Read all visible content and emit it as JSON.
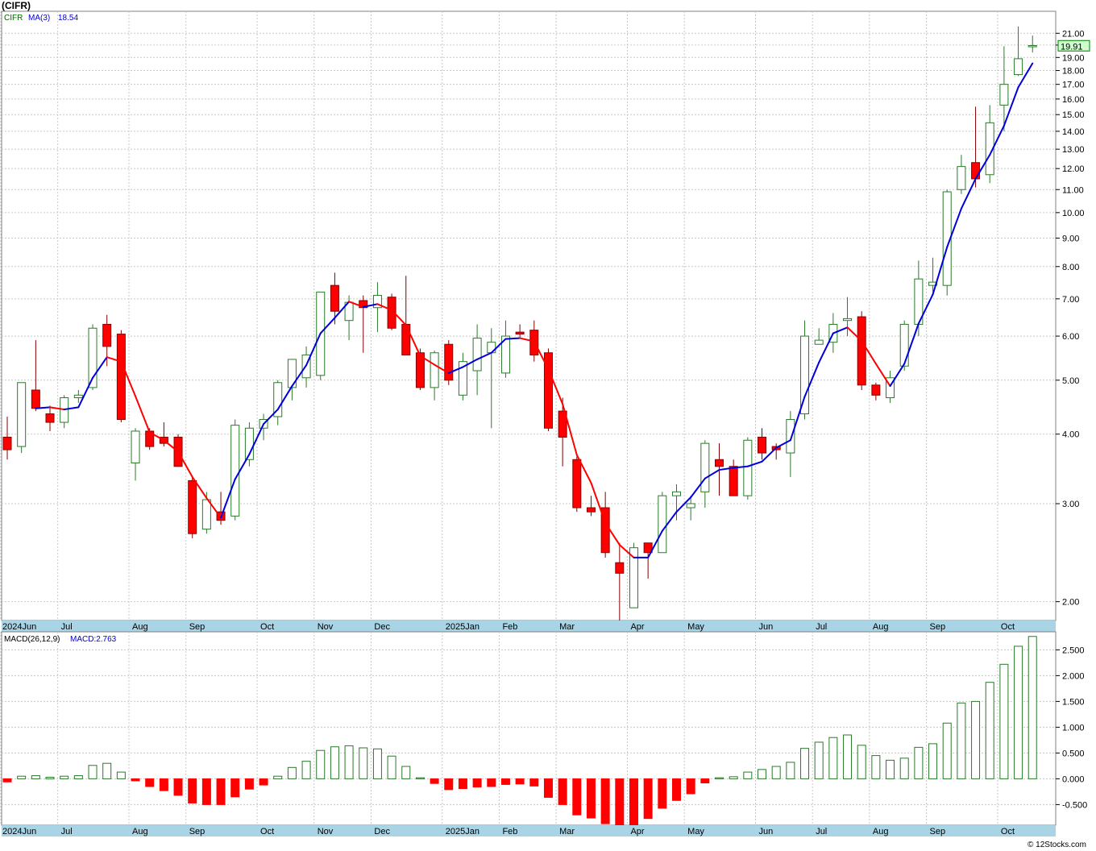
{
  "header": {
    "ticker_title": "(CIFR)",
    "footer": "© 12Stocks.com"
  },
  "colors": {
    "up_fill": "#ffffff",
    "up_stroke": "#2a7a2a",
    "down_fill": "#ff0000",
    "down_stroke": "#8b0000",
    "ma_up": "#0000dd",
    "ma_down": "#ff0000",
    "axis_band": "#a8d4e6",
    "last_price_bg": "#ccffcc"
  },
  "chart_data": [
    {
      "type": "candlestick",
      "name": "price",
      "legend": {
        "symbol": "CIFR",
        "indicator": "MA(3)",
        "indicator_value": "18.54"
      },
      "last_price_label": "19.91",
      "y_scale": "log",
      "ylim": [
        1.85,
        23.0
      ],
      "y_ticks": [
        "2.00",
        "3.00",
        "4.00",
        "5.00",
        "6.00",
        "7.00",
        "8.00",
        "9.00",
        "10.00",
        "11.00",
        "12.00",
        "13.00",
        "14.00",
        "15.00",
        "16.00",
        "17.00",
        "18.00",
        "19.00",
        "20.00",
        "21.00"
      ],
      "x_labels": [
        "2024Jun",
        "Jul",
        "Aug",
        "Sep",
        "Oct",
        "Nov",
        "Dec",
        "2025Jan",
        "Feb",
        "Mar",
        "Apr",
        "May",
        "Jun",
        "Jul",
        "Aug",
        "Sep",
        "Oct"
      ],
      "ohlc": [
        [
          3.95,
          4.3,
          3.6,
          3.75
        ],
        [
          3.8,
          4.95,
          3.7,
          4.95
        ],
        [
          4.8,
          5.9,
          4.4,
          4.45
        ],
        [
          4.35,
          4.5,
          4.05,
          4.2
        ],
        [
          4.2,
          4.7,
          4.1,
          4.65
        ],
        [
          4.65,
          4.8,
          4.55,
          4.7
        ],
        [
          4.85,
          6.3,
          4.8,
          6.2
        ],
        [
          6.3,
          6.55,
          5.3,
          5.75
        ],
        [
          6.05,
          6.15,
          4.2,
          4.25
        ],
        [
          3.55,
          4.1,
          3.3,
          4.05
        ],
        [
          4.05,
          4.1,
          3.75,
          3.8
        ],
        [
          3.95,
          4.2,
          3.8,
          3.85
        ],
        [
          3.95,
          4.0,
          3.5,
          3.5
        ],
        [
          3.3,
          3.35,
          2.6,
          2.65
        ],
        [
          2.7,
          3.15,
          2.65,
          3.05
        ],
        [
          2.9,
          3.15,
          2.75,
          2.8
        ],
        [
          2.85,
          4.25,
          2.8,
          4.15
        ],
        [
          3.6,
          4.2,
          3.5,
          4.1
        ],
        [
          4.1,
          4.35,
          3.9,
          4.25
        ],
        [
          4.3,
          5.0,
          4.15,
          4.95
        ],
        [
          4.85,
          5.4,
          4.6,
          5.45
        ],
        [
          5.05,
          5.75,
          4.85,
          5.55
        ],
        [
          5.1,
          7.2,
          5.0,
          7.2
        ],
        [
          7.4,
          7.8,
          6.3,
          6.65
        ],
        [
          6.4,
          7.1,
          5.9,
          6.9
        ],
        [
          6.95,
          7.1,
          5.6,
          6.75
        ],
        [
          6.75,
          7.5,
          6.1,
          7.1
        ],
        [
          7.05,
          7.15,
          6.15,
          6.2
        ],
        [
          6.3,
          7.7,
          5.55,
          5.55
        ],
        [
          5.6,
          5.7,
          4.8,
          4.85
        ],
        [
          4.85,
          5.65,
          4.6,
          5.6
        ],
        [
          5.8,
          5.9,
          4.9,
          5.0
        ],
        [
          4.7,
          5.6,
          4.6,
          5.4
        ],
        [
          5.2,
          6.3,
          4.7,
          5.95
        ],
        [
          5.6,
          6.2,
          4.1,
          5.85
        ],
        [
          5.15,
          6.4,
          5.05,
          6.0
        ],
        [
          6.1,
          6.3,
          5.95,
          6.05
        ],
        [
          6.15,
          6.4,
          5.4,
          5.55
        ],
        [
          5.6,
          5.7,
          4.05,
          4.1
        ],
        [
          4.4,
          4.65,
          3.5,
          3.95
        ],
        [
          3.6,
          3.65,
          2.9,
          2.95
        ],
        [
          2.95,
          3.1,
          2.85,
          2.9
        ],
        [
          2.95,
          3.15,
          2.4,
          2.45
        ],
        [
          2.35,
          2.55,
          1.85,
          2.25
        ],
        [
          1.95,
          2.55,
          1.95,
          2.5
        ],
        [
          2.55,
          2.55,
          2.2,
          2.45
        ],
        [
          2.45,
          3.15,
          2.45,
          3.1
        ],
        [
          3.1,
          3.25,
          2.8,
          3.15
        ],
        [
          2.95,
          3.1,
          2.8,
          3.0
        ],
        [
          3.15,
          3.9,
          2.95,
          3.85
        ],
        [
          3.6,
          3.85,
          3.1,
          3.5
        ],
        [
          3.5,
          3.6,
          3.1,
          3.1
        ],
        [
          3.1,
          3.95,
          3.05,
          3.9
        ],
        [
          3.95,
          4.1,
          3.6,
          3.7
        ],
        [
          3.8,
          3.85,
          3.6,
          3.75
        ],
        [
          3.7,
          4.4,
          3.35,
          4.25
        ],
        [
          4.35,
          6.4,
          4.25,
          6.0
        ],
        [
          5.8,
          6.2,
          5.8,
          5.9
        ],
        [
          5.85,
          6.6,
          5.6,
          6.3
        ],
        [
          6.4,
          7.05,
          6.0,
          6.45
        ],
        [
          6.5,
          6.65,
          4.8,
          4.9
        ],
        [
          4.9,
          4.95,
          4.6,
          4.7
        ],
        [
          4.65,
          5.2,
          4.55,
          5.05
        ],
        [
          5.3,
          6.4,
          5.2,
          6.3
        ],
        [
          6.3,
          8.2,
          6.0,
          7.6
        ],
        [
          7.4,
          8.3,
          7.2,
          7.5
        ],
        [
          7.4,
          11.0,
          7.1,
          10.9
        ],
        [
          11.0,
          12.7,
          10.8,
          12.1
        ],
        [
          12.3,
          15.5,
          11.1,
          11.5
        ],
        [
          11.7,
          15.6,
          11.3,
          14.5
        ],
        [
          15.6,
          19.9,
          14.0,
          17.0
        ],
        [
          17.7,
          21.6,
          17.6,
          18.9
        ],
        [
          19.91,
          20.8,
          19.4,
          19.91
        ]
      ],
      "ma_values": [
        null,
        null,
        4.45,
        4.47,
        4.43,
        4.47,
        5.05,
        5.5,
        5.4,
        4.68,
        4.03,
        3.9,
        3.72,
        3.35,
        3.07,
        2.83,
        3.32,
        3.68,
        4.17,
        4.43,
        4.88,
        5.32,
        6.07,
        6.47,
        6.92,
        6.77,
        6.85,
        6.68,
        6.28,
        5.53,
        5.33,
        5.15,
        5.28,
        5.45,
        5.6,
        5.93,
        5.95,
        5.87,
        5.23,
        4.53,
        3.67,
        3.27,
        2.77,
        2.53,
        2.4,
        2.4,
        2.68,
        2.9,
        3.08,
        3.33,
        3.45,
        3.48,
        3.5,
        3.57,
        3.78,
        3.9,
        4.67,
        5.38,
        6.07,
        6.22,
        5.88,
        5.35,
        4.88,
        5.35,
        6.32,
        7.13,
        8.67,
        10.17,
        11.5,
        12.7,
        14.33,
        16.8,
        18.54
      ]
    },
    {
      "type": "bar",
      "name": "macd_histogram",
      "legend": {
        "indicator": "MACD(26,12,9)",
        "indicator_value": "MACD:2.763"
      },
      "ylim": [
        -0.9,
        2.85
      ],
      "y_ticks": [
        "-0.500",
        "0.000",
        "0.500",
        "1.000",
        "1.500",
        "2.000",
        "2.500"
      ],
      "x_labels": [
        "2024Jun",
        "Jul",
        "Aug",
        "Sep",
        "Oct",
        "Nov",
        "Dec",
        "2025Jan",
        "Feb",
        "Mar",
        "Apr",
        "May",
        "Jun",
        "Jul",
        "Aug",
        "Sep",
        "Oct"
      ],
      "values": [
        -0.06,
        0.05,
        0.06,
        0.03,
        0.05,
        0.06,
        0.26,
        0.3,
        0.13,
        -0.04,
        -0.15,
        -0.23,
        -0.32,
        -0.47,
        -0.5,
        -0.5,
        -0.35,
        -0.2,
        -0.12,
        0.05,
        0.22,
        0.34,
        0.55,
        0.62,
        0.64,
        0.6,
        0.58,
        0.44,
        0.24,
        0.02,
        -0.09,
        -0.21,
        -0.19,
        -0.16,
        -0.15,
        -0.11,
        -0.1,
        -0.14,
        -0.36,
        -0.5,
        -0.7,
        -0.76,
        -0.87,
        -0.92,
        -0.91,
        -0.77,
        -0.57,
        -0.42,
        -0.29,
        -0.08,
        0.02,
        0.04,
        0.13,
        0.18,
        0.24,
        0.32,
        0.59,
        0.71,
        0.8,
        0.85,
        0.65,
        0.45,
        0.36,
        0.4,
        0.61,
        0.68,
        1.08,
        1.47,
        1.5,
        1.87,
        2.22,
        2.57,
        2.76
      ]
    }
  ]
}
